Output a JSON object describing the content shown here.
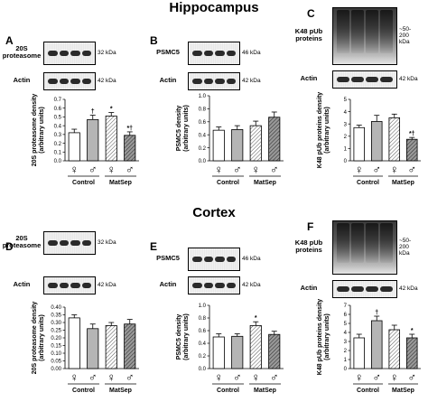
{
  "sections": [
    {
      "title": "Hippocampus"
    },
    {
      "title": "Cortex"
    }
  ],
  "legend_symbols": {
    "female": "♀",
    "male": "♂"
  },
  "group_labels": [
    "Control",
    "MatSep"
  ],
  "panels": [
    {
      "letter": "A",
      "blots": [
        {
          "label": "20S\nproteasome",
          "kda": "32 kDa"
        },
        {
          "label": "Actin",
          "kda": "42 kDa"
        }
      ]
    },
    {
      "letter": "B",
      "blots": [
        {
          "label": "PSMC5",
          "kda": "46 kDa"
        },
        {
          "label": "Actin",
          "kda": "42 kDa"
        }
      ]
    },
    {
      "letter": "C",
      "blots": [
        {
          "label": "K48 pUb\nproteins",
          "kda": "~50-\n200\nkDa"
        },
        {
          "label": "Actin",
          "kda": "42 kDa"
        }
      ]
    },
    {
      "letter": "D",
      "blots": [
        {
          "label": "20S\nproteasome",
          "kda": "32 kDa"
        },
        {
          "label": "Actin",
          "kda": "42 kDa"
        }
      ]
    },
    {
      "letter": "E",
      "blots": [
        {
          "label": "PSMC5",
          "kda": "46 kDa"
        },
        {
          "label": "Actin",
          "kda": "42 kDa"
        }
      ]
    },
    {
      "letter": "F",
      "blots": [
        {
          "label": "K48 pUb\nproteins",
          "kda": "~50-\n200\nkDa"
        },
        {
          "label": "Actin",
          "kda": "42 kDa"
        }
      ]
    }
  ],
  "chart_data": [
    {
      "type": "bar",
      "panel": "A",
      "categories": [
        "Control ♀",
        "Control ♂",
        "MatSep ♀",
        "MatSep ♂"
      ],
      "values": [
        0.32,
        0.47,
        0.51,
        0.29
      ],
      "errors": [
        0.04,
        0.05,
        0.04,
        0.04
      ],
      "annotations": [
        "",
        "†",
        "*",
        "*†"
      ],
      "ylabel": "20S proteasome density\n(arbitrary units)",
      "ylim": [
        0,
        0.7
      ],
      "yticks": [
        0.0,
        0.1,
        0.2,
        0.3,
        0.4,
        0.5,
        0.6,
        0.7
      ],
      "ytick_labels": [
        "0.0",
        "0.1",
        "0.2",
        "0.3",
        "0.4",
        "0.5",
        "0.6",
        "0.7"
      ]
    },
    {
      "type": "bar",
      "panel": "B",
      "categories": [
        "Control ♀",
        "Control ♂",
        "MatSep ♀",
        "MatSep ♂"
      ],
      "values": [
        0.47,
        0.48,
        0.54,
        0.67
      ],
      "errors": [
        0.05,
        0.06,
        0.07,
        0.08
      ],
      "annotations": [
        "",
        "",
        "",
        ""
      ],
      "ylabel": "PSMC5 density\n(arbitrary units)",
      "ylim": [
        0,
        1.0
      ],
      "yticks": [
        0.0,
        0.2,
        0.4,
        0.6,
        0.8,
        1.0
      ],
      "ytick_labels": [
        "0.0",
        "0.2",
        "0.4",
        "0.6",
        "0.8",
        "1.0"
      ]
    },
    {
      "type": "bar",
      "panel": "C",
      "categories": [
        "Control ♀",
        "Control ♂",
        "MatSep ♀",
        "MatSep ♂"
      ],
      "values": [
        2.7,
        3.2,
        3.5,
        1.75
      ],
      "errors": [
        0.2,
        0.5,
        0.3,
        0.15
      ],
      "annotations": [
        "",
        "",
        "",
        "*†"
      ],
      "ylabel": "K48 pUb proteins density\n(arbitrary units)",
      "ylim": [
        0,
        5
      ],
      "yticks": [
        0,
        1,
        2,
        3,
        4,
        5
      ],
      "ytick_labels": [
        "0",
        "1",
        "2",
        "3",
        "4",
        "5"
      ]
    },
    {
      "type": "bar",
      "panel": "D",
      "categories": [
        "Control ♀",
        "Control ♂",
        "MatSep ♀",
        "MatSep ♂"
      ],
      "values": [
        0.33,
        0.26,
        0.28,
        0.29
      ],
      "errors": [
        0.02,
        0.03,
        0.02,
        0.03
      ],
      "annotations": [
        "",
        "",
        "",
        ""
      ],
      "ylabel": "20S proteasome density\n(arbitrary units)",
      "ylim": [
        0,
        0.4
      ],
      "yticks": [
        0.0,
        0.05,
        0.1,
        0.15,
        0.2,
        0.25,
        0.3,
        0.35,
        0.4
      ],
      "ytick_labels": [
        "0.00",
        "0.05",
        "0.10",
        "0.15",
        "0.20",
        "0.25",
        "0.30",
        "0.35",
        "0.40"
      ]
    },
    {
      "type": "bar",
      "panel": "E",
      "categories": [
        "Control ♀",
        "Control ♂",
        "MatSep ♀",
        "MatSep ♂"
      ],
      "values": [
        0.5,
        0.51,
        0.68,
        0.54
      ],
      "errors": [
        0.05,
        0.04,
        0.06,
        0.05
      ],
      "annotations": [
        "",
        "",
        "*",
        ""
      ],
      "ylabel": "PSMC5 density\n(arbitrary units)",
      "ylim": [
        0,
        1.0
      ],
      "yticks": [
        0.0,
        0.2,
        0.4,
        0.6,
        0.8,
        1.0
      ],
      "ytick_labels": [
        "0.0",
        "0.2",
        "0.4",
        "0.6",
        "0.8",
        "1.0"
      ]
    },
    {
      "type": "bar",
      "panel": "F",
      "categories": [
        "Control ♀",
        "Control ♂",
        "MatSep ♀",
        "MatSep ♂"
      ],
      "values": [
        3.4,
        5.3,
        4.3,
        3.4
      ],
      "errors": [
        0.4,
        0.5,
        0.5,
        0.4
      ],
      "annotations": [
        "",
        "†",
        "",
        "*"
      ],
      "ylabel": "K48 pUb proteins density\n(arbitrary units)",
      "ylim": [
        0,
        7
      ],
      "yticks": [
        0,
        1,
        2,
        3,
        4,
        5,
        6,
        7
      ],
      "ytick_labels": [
        "0",
        "1",
        "2",
        "3",
        "4",
        "5",
        "6",
        "7"
      ]
    }
  ]
}
